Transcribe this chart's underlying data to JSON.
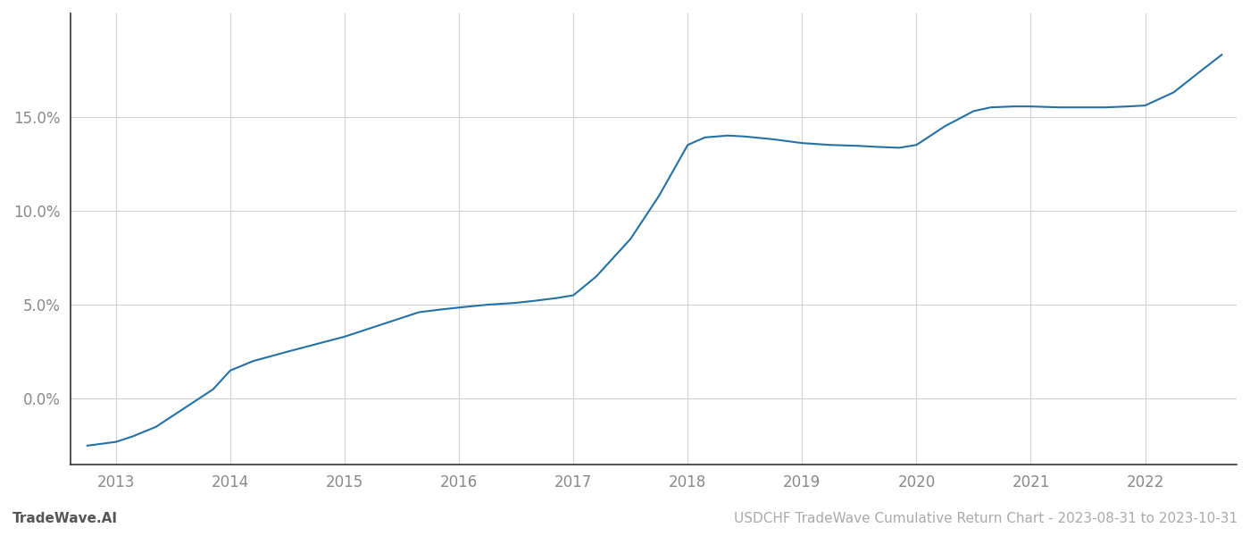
{
  "x_values": [
    2012.75,
    2013.0,
    2013.15,
    2013.35,
    2013.6,
    2013.85,
    2014.0,
    2014.2,
    2014.5,
    2014.75,
    2015.0,
    2015.25,
    2015.5,
    2015.65,
    2015.85,
    2016.0,
    2016.25,
    2016.5,
    2016.65,
    2016.85,
    2017.0,
    2017.2,
    2017.5,
    2017.75,
    2018.0,
    2018.15,
    2018.35,
    2018.5,
    2018.75,
    2019.0,
    2019.25,
    2019.5,
    2019.65,
    2019.85,
    2020.0,
    2020.25,
    2020.5,
    2020.65,
    2020.85,
    2021.0,
    2021.25,
    2021.5,
    2021.65,
    2021.85,
    2022.0,
    2022.25,
    2022.5,
    2022.67
  ],
  "y_values": [
    -2.5,
    -2.3,
    -2.0,
    -1.5,
    -0.5,
    0.5,
    1.5,
    2.0,
    2.5,
    2.9,
    3.3,
    3.8,
    4.3,
    4.6,
    4.75,
    4.85,
    5.0,
    5.1,
    5.2,
    5.35,
    5.5,
    6.5,
    8.5,
    10.8,
    13.5,
    13.9,
    14.0,
    13.95,
    13.8,
    13.6,
    13.5,
    13.45,
    13.4,
    13.35,
    13.5,
    14.5,
    15.3,
    15.5,
    15.55,
    15.55,
    15.5,
    15.5,
    15.5,
    15.55,
    15.6,
    16.3,
    17.5,
    18.3
  ],
  "line_color": "#2471a3",
  "line_width": 1.5,
  "background_color": "#ffffff",
  "grid_color": "#cccccc",
  "ytick_labels": [
    "0.0%",
    "5.0%",
    "10.0%",
    "15.0%"
  ],
  "ytick_values": [
    0.0,
    5.0,
    10.0,
    15.0
  ],
  "xtick_values": [
    2013,
    2014,
    2015,
    2016,
    2017,
    2018,
    2019,
    2020,
    2021,
    2022
  ],
  "xlim": [
    2012.6,
    2022.8
  ],
  "ylim": [
    -3.5,
    20.5
  ],
  "footer_left": "TradeWave.AI",
  "footer_right": "USDCHF TradeWave Cumulative Return Chart - 2023-08-31 to 2023-10-31",
  "footer_color": "#aaaaaa",
  "footer_fontsize": 11,
  "tick_label_color": "#888888",
  "tick_fontsize": 12,
  "spine_color": "#333333",
  "left_spine_color": "#333333"
}
